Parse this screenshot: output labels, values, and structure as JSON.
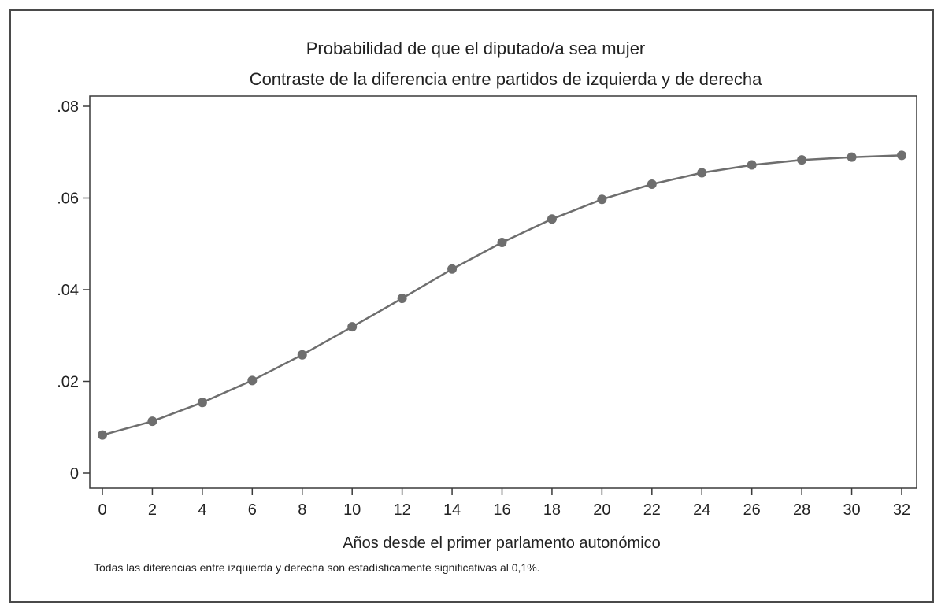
{
  "chart_data": {
    "type": "line",
    "title": "Probabilidad de que el diputado/a sea mujer",
    "subtitle": "Contraste de la diferencia entre partidos de izquierda y de derecha",
    "xlabel": "Años desde el primer parlamento autonómico",
    "ylabel": "",
    "note": "Todas las diferencias entre izquierda y derecha son estadísticamente significativas al 0,1%.",
    "xlim": [
      0,
      32
    ],
    "ylim": [
      0,
      0.08
    ],
    "x_ticks": [
      0,
      2,
      4,
      6,
      8,
      10,
      12,
      14,
      16,
      18,
      20,
      22,
      24,
      26,
      28,
      30,
      32
    ],
    "y_ticks": [
      0,
      0.02,
      0.04,
      0.06,
      0.08
    ],
    "y_tick_labels": [
      "0",
      ".02",
      ".04",
      ".06",
      ".08"
    ],
    "grid": false,
    "series": [
      {
        "x": [
          0,
          2,
          4,
          6,
          8,
          10,
          12,
          14,
          16,
          18,
          20,
          22,
          24,
          26,
          28,
          30,
          32
        ],
        "values": [
          0.0083,
          0.0113,
          0.0154,
          0.0202,
          0.0258,
          0.0319,
          0.0381,
          0.0445,
          0.0503,
          0.0554,
          0.0597,
          0.063,
          0.0655,
          0.0672,
          0.0683,
          0.0689,
          0.0693
        ],
        "color": "#6e6e6e"
      }
    ]
  }
}
